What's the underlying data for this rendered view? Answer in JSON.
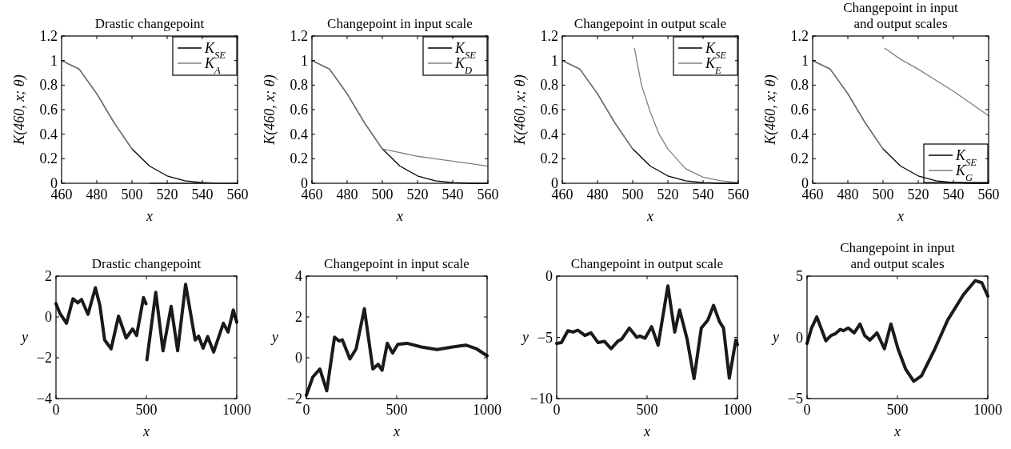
{
  "chart_data": [
    {
      "type": "line",
      "title": "Drastic changepoint",
      "xlabel": "x",
      "ylabel": "K(460, x; θ)",
      "xlim": [
        460,
        560
      ],
      "xticks": [
        460,
        480,
        500,
        520,
        540,
        560
      ],
      "ylim": [
        0,
        1.2
      ],
      "yticks": [
        0,
        0.2,
        0.4,
        0.6,
        0.8,
        1,
        1.2
      ],
      "legend": "top right",
      "series": [
        {
          "name": "K$_{SE}$",
          "color": "#000000",
          "x": [
            460,
            470,
            480,
            490,
            500,
            510,
            520,
            530,
            540,
            550,
            560
          ],
          "values": [
            1,
            0.93,
            0.73,
            0.49,
            0.28,
            0.14,
            0.06,
            0.02,
            0.006,
            0,
            0
          ]
        },
        {
          "name": "K$_{A}$",
          "color": "#7f7f7f",
          "x": [
            460,
            470,
            480,
            490,
            500,
            505,
            510,
            520,
            530,
            540,
            550,
            560
          ],
          "values": [
            1,
            0.93,
            0.73,
            0.49,
            0.28,
            null,
            0,
            0,
            0,
            0,
            0,
            0
          ]
        }
      ]
    },
    {
      "type": "line",
      "title": "Changepoint in input scale",
      "xlabel": "x",
      "ylabel": "K(460, x; θ)",
      "xlim": [
        460,
        560
      ],
      "xticks": [
        460,
        480,
        500,
        520,
        540,
        560
      ],
      "ylim": [
        0,
        1.2
      ],
      "yticks": [
        0,
        0.2,
        0.4,
        0.6,
        0.8,
        1,
        1.2
      ],
      "legend": "top right",
      "series": [
        {
          "name": "K$_{SE}$",
          "color": "#000000",
          "x": [
            460,
            470,
            480,
            490,
            500,
            510,
            520,
            530,
            540,
            550,
            560
          ],
          "values": [
            1,
            0.93,
            0.73,
            0.49,
            0.28,
            0.14,
            0.06,
            0.02,
            0.006,
            0,
            0
          ]
        },
        {
          "name": "K$_{D}$",
          "color": "#7f7f7f",
          "x": [
            460,
            470,
            480,
            490,
            500,
            510,
            520,
            530,
            540,
            550,
            560
          ],
          "values": [
            1,
            0.93,
            0.73,
            0.49,
            0.28,
            0.25,
            0.22,
            0.2,
            0.18,
            0.16,
            0.14
          ]
        }
      ]
    },
    {
      "type": "line",
      "title": "Changepoint in output scale",
      "xlabel": "x",
      "ylabel": "K(460, x; θ)",
      "xlim": [
        460,
        560
      ],
      "xticks": [
        460,
        480,
        500,
        520,
        540,
        560
      ],
      "ylim": [
        0,
        1.2
      ],
      "yticks": [
        0,
        0.2,
        0.4,
        0.6,
        0.8,
        1,
        1.2
      ],
      "legend": "top right",
      "series": [
        {
          "name": "K$_{SE}$",
          "color": "#000000",
          "x": [
            460,
            470,
            480,
            490,
            500,
            510,
            520,
            530,
            540,
            550,
            560
          ],
          "values": [
            1,
            0.93,
            0.73,
            0.49,
            0.28,
            0.14,
            0.06,
            0.02,
            0.006,
            0,
            0
          ]
        },
        {
          "name": "K$_{E}$",
          "color": "#7f7f7f",
          "x": [
            460,
            470,
            480,
            490,
            500,
            500.5,
            501,
            505,
            510,
            515,
            520,
            530,
            540,
            550,
            560
          ],
          "values": [
            1,
            0.93,
            0.73,
            0.49,
            0.28,
            null,
            1.1,
            0.8,
            0.58,
            0.4,
            0.28,
            0.12,
            0.05,
            0.02,
            0.005
          ]
        }
      ]
    },
    {
      "type": "line",
      "title": "Changepoint in input\nand output scales",
      "xlabel": "x",
      "ylabel": "K(460, x; θ)",
      "xlim": [
        460,
        560
      ],
      "xticks": [
        460,
        480,
        500,
        520,
        540,
        560
      ],
      "ylim": [
        0,
        1.2
      ],
      "yticks": [
        0,
        0.2,
        0.4,
        0.6,
        0.8,
        1,
        1.2
      ],
      "legend": "bottom right",
      "series": [
        {
          "name": "K$_{SE}$",
          "color": "#000000",
          "x": [
            460,
            470,
            480,
            490,
            500,
            510,
            520,
            530,
            540,
            550,
            560
          ],
          "values": [
            1,
            0.93,
            0.73,
            0.49,
            0.28,
            0.14,
            0.06,
            0.02,
            0.006,
            0,
            0
          ]
        },
        {
          "name": "K$_{G}$",
          "color": "#7f7f7f",
          "x": [
            460,
            470,
            480,
            490,
            500,
            500.5,
            501,
            510,
            520,
            530,
            540,
            550,
            560
          ],
          "values": [
            1,
            0.93,
            0.73,
            0.49,
            0.28,
            null,
            1.1,
            1.01,
            0.93,
            0.84,
            0.75,
            0.65,
            0.55
          ]
        }
      ]
    },
    {
      "type": "line",
      "title": "Drastic changepoint",
      "xlabel": "x",
      "ylabel": "y",
      "xlim": [
        0,
        1000
      ],
      "xticks": [
        0,
        500,
        1000
      ],
      "ylim": [
        -4,
        2
      ],
      "yticks": [
        -4,
        -2,
        0,
        2
      ],
      "series": [
        {
          "color": "#1a1a1a",
          "x": [
            0,
            22,
            58,
            94,
            121,
            141,
            177,
            218,
            243,
            269,
            305,
            346,
            388,
            424,
            446,
            484,
            498,
            500,
            503,
            552,
            592,
            637,
            673,
            717,
            770,
            789,
            814,
            839,
            872,
            926,
            952,
            981,
            1000
          ],
          "values": [
            0.65,
            0.17,
            -0.31,
            0.89,
            0.69,
            0.86,
            0.13,
            1.43,
            0.56,
            -1.13,
            -1.56,
            0.04,
            -1.03,
            -0.59,
            -0.91,
            0.95,
            0.65,
            null,
            -2.1,
            1.21,
            -1.66,
            0.52,
            -1.66,
            1.6,
            -1.13,
            -0.94,
            -1.53,
            -0.96,
            -1.72,
            -0.31,
            -0.74,
            0.34,
            -0.26
          ]
        }
      ]
    },
    {
      "type": "line",
      "title": "Changepoint in input scale",
      "xlabel": "x",
      "ylabel": "y",
      "xlim": [
        0,
        1000
      ],
      "xticks": [
        0,
        500,
        1000
      ],
      "ylim": [
        -2,
        4
      ],
      "yticks": [
        -2,
        0,
        2,
        4
      ],
      "series": [
        {
          "color": "#1a1a1a",
          "x": [
            0,
            36,
            75,
            113,
            156,
            181,
            199,
            241,
            275,
            321,
            368,
            397,
            419,
            448,
            477,
            506,
            556,
            636,
            723,
            809,
            882,
            939,
            1000
          ],
          "values": [
            -1.84,
            -0.94,
            -0.55,
            -1.62,
            1.01,
            0.82,
            0.88,
            -0.06,
            0.43,
            2.4,
            -0.55,
            -0.32,
            -0.61,
            0.71,
            0.23,
            0.66,
            0.71,
            0.53,
            0.4,
            0.53,
            0.62,
            0.45,
            0.1
          ]
        }
      ]
    },
    {
      "type": "line",
      "title": "Changepoint in output scale",
      "xlabel": "x",
      "ylabel": "y",
      "xlim": [
        0,
        1000
      ],
      "xticks": [
        0,
        500,
        1000
      ],
      "ylim": [
        -10,
        0
      ],
      "yticks": [
        -10,
        -5,
        0
      ],
      "series": [
        {
          "color": "#1a1a1a",
          "x": [
            0,
            26,
            62,
            91,
            117,
            156,
            190,
            229,
            265,
            301,
            337,
            359,
            402,
            443,
            460,
            489,
            525,
            561,
            615,
            653,
            680,
            721,
            760,
            800,
            836,
            868,
            900,
            923,
            955,
            991,
            1000
          ],
          "values": [
            -5.5,
            -5.43,
            -4.46,
            -4.57,
            -4.41,
            -4.85,
            -4.63,
            -5.43,
            -5.33,
            -5.93,
            -5.33,
            -5.15,
            -4.24,
            -5,
            -4.89,
            -5.07,
            -4.13,
            -5.65,
            -0.8,
            -4.57,
            -2.76,
            -5.11,
            -8.37,
            -4.24,
            -3.59,
            -2.39,
            -3.7,
            -4.24,
            -8.33,
            -5.22,
            -5.59
          ]
        }
      ]
    },
    {
      "type": "line",
      "title": "Changepoint in input\nand output scales",
      "xlabel": "x",
      "ylabel": "y",
      "xlim": [
        0,
        1000
      ],
      "xticks": [
        0,
        500,
        1000
      ],
      "ylim": [
        -5,
        5
      ],
      "yticks": [
        -5,
        0,
        5
      ],
      "series": [
        {
          "color": "#1a1a1a",
          "x": [
            0,
            25,
            54,
            86,
            104,
            133,
            155,
            184,
            201,
            228,
            261,
            293,
            319,
            348,
            387,
            428,
            464,
            503,
            546,
            590,
            633,
            706,
            778,
            865,
            930,
            967,
            1000
          ],
          "values": [
            -0.5,
            0.76,
            1.67,
            0.43,
            -0.28,
            0.15,
            0.28,
            0.65,
            0.54,
            0.76,
            0.37,
            1.09,
            0.15,
            -0.22,
            0.37,
            -0.93,
            1.09,
            -0.93,
            -2.61,
            -3.59,
            -3.15,
            -0.98,
            1.41,
            3.48,
            4.63,
            4.46,
            3.37
          ]
        }
      ]
    }
  ]
}
